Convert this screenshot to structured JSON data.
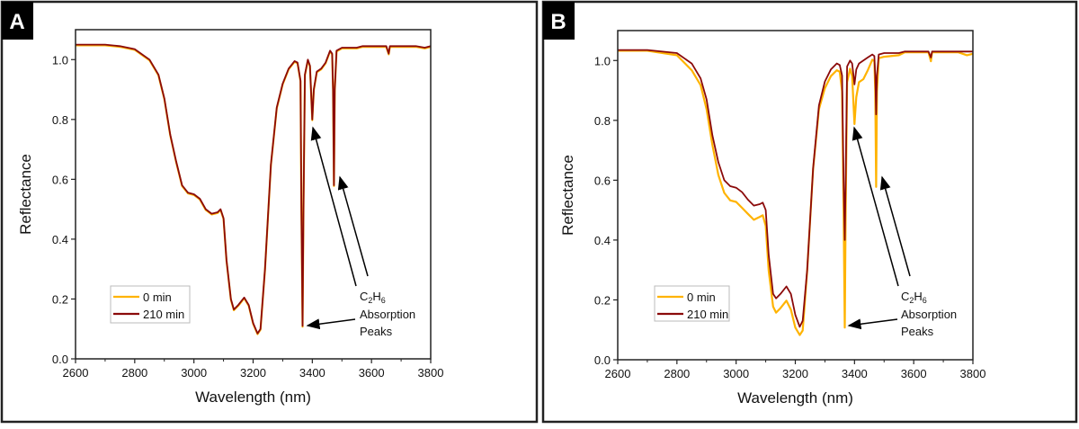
{
  "chart_data": [
    {
      "panel_label": "A",
      "type": "line",
      "xlabel": "Wavelength (nm)",
      "ylabel": "Reflectance",
      "xlim": [
        2600,
        3800
      ],
      "ylim": [
        0,
        1.1
      ],
      "xticks": [
        2600,
        2800,
        3000,
        3200,
        3400,
        3600,
        3800
      ],
      "yticks": [
        "0.0",
        "0.2",
        "0.4",
        "0.6",
        "0.8",
        "1.0"
      ],
      "grid": false,
      "legend": "bottom-left",
      "annotation": {
        "formula": "C",
        "sub1": "2",
        "mid": "H",
        "sub2": "6",
        "line2": "Absorption",
        "line3": "Peaks"
      },
      "x": [
        2600,
        2700,
        2750,
        2800,
        2850,
        2880,
        2900,
        2920,
        2940,
        2960,
        2980,
        3000,
        3020,
        3040,
        3060,
        3080,
        3090,
        3100,
        3110,
        3125,
        3135,
        3150,
        3170,
        3185,
        3200,
        3215,
        3225,
        3240,
        3260,
        3280,
        3300,
        3320,
        3340,
        3350,
        3360,
        3363,
        3367,
        3370,
        3375,
        3385,
        3392,
        3400,
        3405,
        3415,
        3430,
        3445,
        3460,
        3467,
        3470,
        3473,
        3476,
        3482,
        3500,
        3550,
        3570,
        3650,
        3658,
        3662,
        3750,
        3780,
        3800
      ],
      "series": [
        {
          "name": "0 min",
          "color": "#FFB300",
          "values": [
            1.05,
            1.05,
            1.045,
            1.035,
            1.0,
            0.95,
            0.87,
            0.75,
            0.66,
            0.58,
            0.555,
            0.55,
            0.535,
            0.5,
            0.485,
            0.49,
            0.5,
            0.47,
            0.33,
            0.2,
            0.165,
            0.18,
            0.205,
            0.18,
            0.12,
            0.085,
            0.1,
            0.3,
            0.65,
            0.84,
            0.92,
            0.97,
            0.995,
            0.99,
            0.93,
            0.5,
            0.11,
            0.5,
            0.95,
            1.0,
            0.98,
            0.8,
            0.9,
            0.96,
            0.97,
            0.99,
            1.03,
            1.02,
            0.9,
            0.58,
            0.9,
            1.03,
            1.04,
            1.04,
            1.045,
            1.045,
            1.02,
            1.045,
            1.045,
            1.04,
            1.045
          ]
        },
        {
          "name": "210 min",
          "color": "#8B0A0A",
          "values": [
            1.05,
            1.05,
            1.045,
            1.035,
            1.0,
            0.95,
            0.87,
            0.75,
            0.66,
            0.58,
            0.555,
            0.55,
            0.535,
            0.5,
            0.485,
            0.49,
            0.5,
            0.47,
            0.33,
            0.2,
            0.165,
            0.18,
            0.205,
            0.18,
            0.12,
            0.085,
            0.1,
            0.3,
            0.65,
            0.84,
            0.92,
            0.97,
            0.995,
            0.99,
            0.93,
            0.5,
            0.11,
            0.5,
            0.95,
            1.0,
            0.98,
            0.8,
            0.9,
            0.96,
            0.97,
            0.99,
            1.03,
            1.02,
            0.9,
            0.58,
            0.9,
            1.03,
            1.04,
            1.04,
            1.045,
            1.045,
            1.02,
            1.045,
            1.045,
            1.04,
            1.045
          ]
        }
      ]
    },
    {
      "panel_label": "B",
      "type": "line",
      "xlabel": "Wavelength (nm)",
      "ylabel": "Reflectance",
      "xlim": [
        2600,
        3800
      ],
      "ylim": [
        0,
        1.1
      ],
      "xticks": [
        2600,
        2800,
        3000,
        3200,
        3400,
        3600,
        3800
      ],
      "yticks": [
        "0.0",
        "0.2",
        "0.4",
        "0.6",
        "0.8",
        "1.0"
      ],
      "grid": false,
      "legend": "bottom-left",
      "annotation": {
        "formula": "C",
        "sub1": "2",
        "mid": "H",
        "sub2": "6",
        "line2": "Absorption",
        "line3": "Peaks"
      },
      "x": [
        2600,
        2700,
        2800,
        2850,
        2880,
        2900,
        2920,
        2940,
        2960,
        2980,
        3000,
        3020,
        3040,
        3060,
        3080,
        3090,
        3100,
        3110,
        3125,
        3135,
        3150,
        3170,
        3185,
        3200,
        3215,
        3225,
        3240,
        3260,
        3280,
        3300,
        3320,
        3340,
        3350,
        3358,
        3363,
        3367,
        3370,
        3375,
        3385,
        3392,
        3400,
        3406,
        3415,
        3430,
        3445,
        3460,
        3467,
        3470,
        3473,
        3476,
        3482,
        3500,
        3550,
        3570,
        3650,
        3658,
        3662,
        3750,
        3780,
        3800
      ],
      "series": [
        {
          "name": "0 min",
          "color": "#FFB300",
          "values": [
            1.035,
            1.035,
            1.02,
            0.97,
            0.92,
            0.84,
            0.72,
            0.62,
            0.56,
            0.535,
            0.53,
            0.51,
            0.49,
            0.47,
            0.48,
            0.485,
            0.45,
            0.3,
            0.18,
            0.16,
            0.175,
            0.2,
            0.17,
            0.11,
            0.085,
            0.1,
            0.3,
            0.64,
            0.84,
            0.91,
            0.95,
            0.97,
            0.965,
            0.9,
            0.5,
            0.11,
            0.5,
            0.93,
            0.975,
            0.95,
            0.79,
            0.88,
            0.93,
            0.94,
            0.97,
            1.005,
            1.0,
            0.9,
            0.58,
            0.9,
            1.01,
            1.015,
            1.02,
            1.03,
            1.03,
            1.0,
            1.03,
            1.03,
            1.02,
            1.025
          ]
        },
        {
          "name": "210 min",
          "color": "#8B0A0A",
          "values": [
            1.035,
            1.035,
            1.025,
            0.99,
            0.94,
            0.87,
            0.75,
            0.66,
            0.6,
            0.58,
            0.575,
            0.56,
            0.535,
            0.515,
            0.52,
            0.525,
            0.5,
            0.35,
            0.22,
            0.205,
            0.22,
            0.245,
            0.22,
            0.15,
            0.11,
            0.13,
            0.3,
            0.64,
            0.85,
            0.93,
            0.97,
            0.99,
            0.985,
            0.95,
            0.6,
            0.4,
            0.6,
            0.98,
            1.0,
            0.99,
            0.92,
            0.97,
            0.99,
            1.0,
            1.01,
            1.02,
            1.015,
            0.95,
            0.82,
            0.95,
            1.02,
            1.025,
            1.025,
            1.03,
            1.03,
            1.01,
            1.03,
            1.03,
            1.03,
            1.03
          ]
        }
      ]
    }
  ]
}
